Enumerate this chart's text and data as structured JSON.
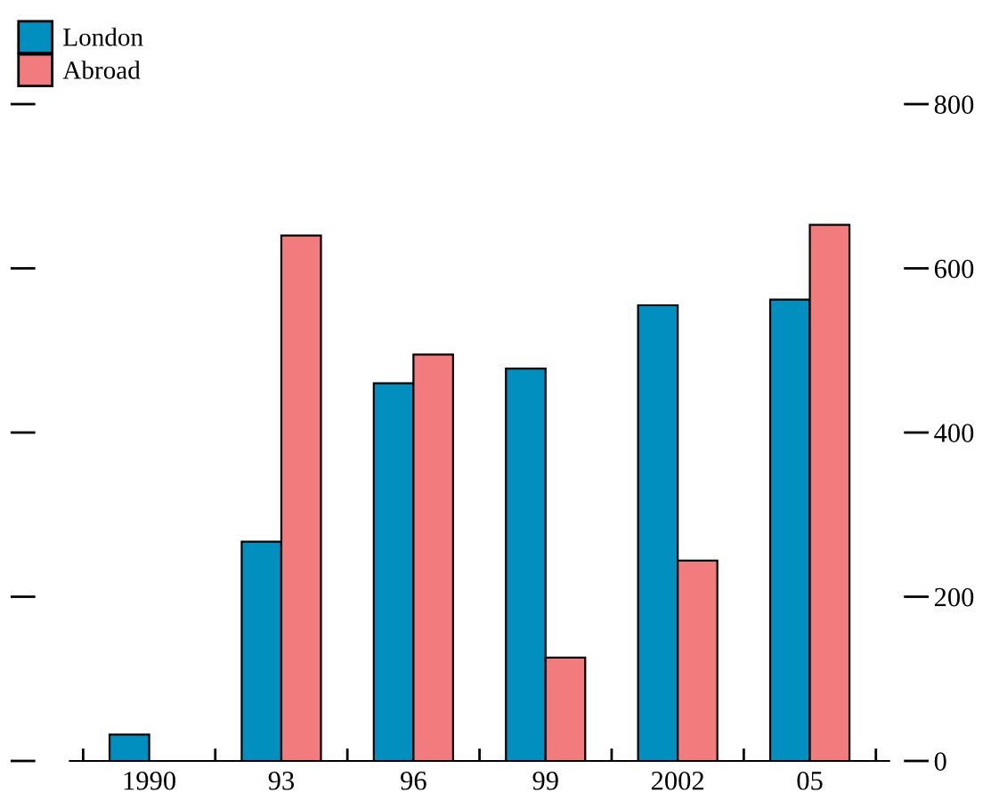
{
  "chart_data": {
    "type": "bar",
    "categories": [
      "1990",
      "93",
      "96",
      "99",
      "2002",
      "05"
    ],
    "series": [
      {
        "name": "London",
        "color": "#008fbf",
        "values": [
          32,
          267,
          460,
          478,
          555,
          562
        ]
      },
      {
        "name": "Abroad",
        "color": "#f27b7d",
        "values": [
          null,
          640,
          495,
          126,
          244,
          653
        ]
      }
    ],
    "ylim": [
      0,
      800
    ],
    "yticks": [
      0,
      200,
      400,
      600,
      800
    ],
    "legend": "top left",
    "grid": false
  }
}
